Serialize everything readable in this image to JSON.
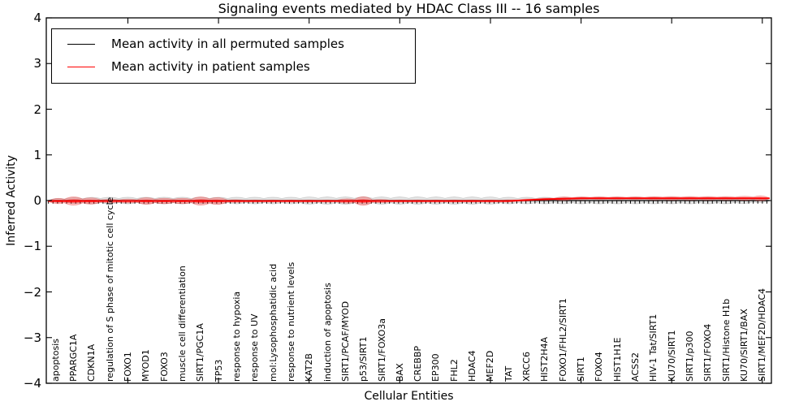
{
  "title": "Signaling events mediated by HDAC Class III -- 16 samples",
  "legend": {
    "entries": [
      {
        "label": "Mean activity in all permuted samples",
        "color": "#000000"
      },
      {
        "label": "Mean activity in patient samples",
        "color": "#ff0000"
      }
    ]
  },
  "y_axis": {
    "label": "Inferred Activity",
    "ticks": [
      "4",
      "3",
      "2",
      "1",
      "0",
      "−1",
      "−2",
      "−3",
      "−4"
    ]
  },
  "x_axis": {
    "label": "Cellular Entities"
  },
  "chart_data": {
    "type": "violin",
    "title": "Signaling events mediated by HDAC Class III -- 16 samples",
    "xlabel": "Cellular Entities",
    "ylabel": "Inferred Activity",
    "ylim": [
      -4,
      4
    ],
    "grid": false,
    "legend_position": "upper left",
    "categories": [
      "apoptosis",
      "PPARGC1A",
      "CDKN1A",
      "regulation of S phase of mitotic cell cycle",
      "FOXO1",
      "MYOD1",
      "FOXO3",
      "muscle cell differentiation",
      "SIRT1/PGC1A",
      "TP53",
      "response to hypoxia",
      "response to UV",
      "mol:Lysophosphatidic acid",
      "response to nutrient levels",
      "KAT2B",
      "induction of apoptosis",
      "SIRT1/PCAF/MYOD",
      "p53/SIRT1",
      "SIRT1/FOXO3a",
      "BAX",
      "CREBBP",
      "EP300",
      "FHL2",
      "HDAC4",
      "MEF2D",
      "TAT",
      "XRCC6",
      "HIST2H4A",
      "FOXO1/FHL2/SIRT1",
      "SIRT1",
      "FOXO4",
      "HIST1H1E",
      "ACSS2",
      "HIV-1 Tat/SIRT1",
      "KU70/SIRT1",
      "SIRT1/p300",
      "SIRT1/FOXO4",
      "SIRT1/Histone H1b",
      "KU70/SIRT1/BAX",
      "SIRT1/MEF2D/HDAC4"
    ],
    "series": [
      {
        "name": "Mean activity in all permuted samples",
        "color": "#000000",
        "fill": "rgba(130,130,130,0.22)",
        "mean": [
          0,
          0,
          0,
          0,
          0,
          0,
          0,
          0,
          0,
          0,
          0,
          0,
          0,
          0,
          0,
          0,
          0,
          0,
          0,
          0,
          0,
          0,
          0,
          0,
          0,
          0,
          0,
          0,
          0,
          0,
          0,
          0,
          0,
          0,
          0,
          0,
          0,
          0,
          0,
          0
        ],
        "violin_halfwidth": [
          0.07,
          0.09,
          0.1,
          0.1,
          0.1,
          0.1,
          0.1,
          0.1,
          0.1,
          0.1,
          0.1,
          0.1,
          0.1,
          0.1,
          0.11,
          0.11,
          0.11,
          0.11,
          0.11,
          0.11,
          0.11,
          0.11,
          0.11,
          0.11,
          0.11,
          0.1,
          0.1,
          0.1,
          0.1,
          0.1,
          0.1,
          0.1,
          0.1,
          0.1,
          0.1,
          0.1,
          0.1,
          0.1,
          0.09,
          0.07
        ]
      },
      {
        "name": "Mean activity in patient samples",
        "color": "#ff0000",
        "fill": "rgba(255,30,30,0.27)",
        "mean": [
          -0.01,
          -0.01,
          -0.01,
          -0.01,
          -0.01,
          -0.01,
          -0.01,
          -0.01,
          -0.01,
          -0.01,
          -0.01,
          -0.01,
          -0.01,
          -0.01,
          -0.01,
          -0.01,
          -0.01,
          -0.01,
          -0.01,
          -0.01,
          -0.01,
          -0.01,
          -0.01,
          -0.01,
          -0.01,
          -0.01,
          0.01,
          0.03,
          0.04,
          0.05,
          0.05,
          0.05,
          0.05,
          0.05,
          0.05,
          0.05,
          0.05,
          0.05,
          0.05,
          0.05
        ],
        "violin_halfwidth": [
          0.09,
          0.14,
          0.1,
          0.05,
          0.06,
          0.11,
          0.08,
          0.08,
          0.14,
          0.11,
          0.04,
          0.03,
          0.03,
          0.03,
          0.03,
          0.03,
          0.07,
          0.16,
          0.05,
          0.03,
          0.03,
          0.03,
          0.03,
          0.03,
          0.03,
          0.03,
          0.03,
          0.03,
          0.06,
          0.04,
          0.04,
          0.04,
          0.04,
          0.05,
          0.05,
          0.05,
          0.05,
          0.05,
          0.06,
          0.09
        ]
      }
    ]
  }
}
